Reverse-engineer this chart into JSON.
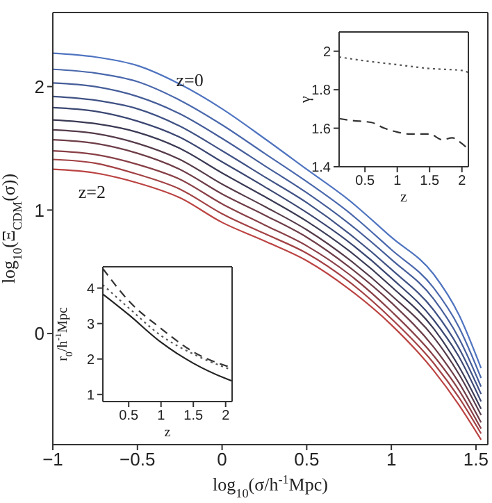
{
  "chart_data": [
    {
      "type": "line",
      "xlabel": "log$_{10}$(σ/h$^{-1}$Mpc)",
      "ylabel": "log$_{10}$(Ξ$_{CDM}$(σ))",
      "x": [
        -1,
        -0.75,
        -0.5,
        -0.25,
        0,
        0.25,
        0.5,
        0.75,
        1,
        1.25,
        1.4,
        1.53
      ],
      "xlim": [
        -1,
        1.57
      ],
      "ylim": [
        -0.9,
        2.6
      ],
      "xticks": [
        {
          "value": -1,
          "label": "−1"
        },
        {
          "value": -0.5,
          "label": "−0.5"
        },
        0,
        0.5,
        1,
        1.5
      ],
      "yticks": [
        0,
        1,
        2
      ],
      "series": [
        {
          "color": "#4f74c0",
          "values": [
            2.27,
            2.24,
            2.17,
            2.02,
            1.82,
            1.58,
            1.33,
            1.08,
            0.78,
            0.48,
            0.15,
            -0.28
          ]
        },
        {
          "color": "#4a68ac",
          "values": [
            2.14,
            2.11,
            2.04,
            1.89,
            1.69,
            1.46,
            1.23,
            0.98,
            0.68,
            0.37,
            0.05,
            -0.36
          ]
        },
        {
          "color": "#455d99",
          "values": [
            2.03,
            2.0,
            1.92,
            1.78,
            1.58,
            1.36,
            1.14,
            0.89,
            0.6,
            0.28,
            -0.04,
            -0.43
          ]
        },
        {
          "color": "#405285",
          "values": [
            1.92,
            1.89,
            1.82,
            1.68,
            1.48,
            1.27,
            1.06,
            0.81,
            0.52,
            0.19,
            -0.12,
            -0.49
          ]
        },
        {
          "color": "#3b4772",
          "values": [
            1.83,
            1.8,
            1.72,
            1.59,
            1.39,
            1.19,
            0.98,
            0.74,
            0.45,
            0.11,
            -0.19,
            -0.55
          ]
        },
        {
          "color": "#3a3a55",
          "values": [
            1.73,
            1.7,
            1.63,
            1.5,
            1.3,
            1.11,
            0.91,
            0.67,
            0.38,
            0.04,
            -0.27,
            -0.61
          ]
        },
        {
          "color": "#553b4a",
          "values": [
            1.65,
            1.62,
            1.54,
            1.41,
            1.21,
            1.03,
            0.84,
            0.6,
            0.31,
            -0.03,
            -0.33,
            -0.66
          ]
        },
        {
          "color": "#6e3d48",
          "values": [
            1.57,
            1.54,
            1.46,
            1.33,
            1.13,
            0.96,
            0.78,
            0.54,
            0.25,
            -0.11,
            -0.4,
            -0.72
          ]
        },
        {
          "color": "#883f46",
          "values": [
            1.48,
            1.45,
            1.37,
            1.25,
            1.05,
            0.88,
            0.71,
            0.48,
            0.18,
            -0.18,
            -0.46,
            -0.77
          ]
        },
        {
          "color": "#a24144",
          "values": [
            1.41,
            1.38,
            1.29,
            1.17,
            0.97,
            0.81,
            0.65,
            0.42,
            0.12,
            -0.24,
            -0.52,
            -0.81
          ]
        },
        {
          "color": "#bb4342",
          "values": [
            1.33,
            1.3,
            1.22,
            1.1,
            0.9,
            0.75,
            0.59,
            0.36,
            0.07,
            -0.3,
            -0.58,
            -0.86
          ]
        }
      ],
      "annotations": [
        "z=0",
        "z=2"
      ]
    },
    {
      "type": "line",
      "xlabel": "z",
      "ylabel": "γ",
      "xlim": [
        0.1,
        2.1
      ],
      "ylim": [
        1.4,
        2.1
      ],
      "xticks": [
        0.5,
        1,
        1.5,
        2
      ],
      "yticks": [
        1.4,
        1.6,
        1.8,
        2
      ],
      "series": [
        {
          "color": "#555555",
          "line_style": "dotted",
          "x": [
            0.1,
            0.5,
            1,
            1.5,
            2,
            2.1
          ],
          "values": [
            1.97,
            1.95,
            1.93,
            1.91,
            1.9,
            1.89
          ]
        },
        {
          "color": "#333333",
          "line_style": "dashed",
          "x": [
            0.1,
            0.3,
            0.6,
            0.8,
            1,
            1.2,
            1.5,
            1.7,
            1.85,
            2,
            2.1
          ],
          "values": [
            1.65,
            1.64,
            1.63,
            1.6,
            1.58,
            1.57,
            1.57,
            1.54,
            1.55,
            1.52,
            1.49
          ]
        }
      ]
    },
    {
      "type": "line",
      "xlabel": "z",
      "ylabel": "r$_{0}$/h$^{-1}$Mpc",
      "xlim": [
        0.1,
        2.1
      ],
      "ylim": [
        0.8,
        4.6
      ],
      "xticks": [
        0.5,
        1,
        1.5,
        2
      ],
      "yticks": [
        1,
        2,
        3,
        4
      ],
      "series": [
        {
          "color": "#222222",
          "line_style": "solid",
          "x": [
            0.1,
            0.5,
            1,
            1.5,
            2,
            2.1
          ],
          "values": [
            3.83,
            3.25,
            2.47,
            1.88,
            1.45,
            1.38
          ]
        },
        {
          "color": "#333333",
          "line_style": "dashed",
          "x": [
            0.1,
            0.5,
            1,
            1.5,
            2.1
          ],
          "values": [
            4.55,
            3.64,
            2.86,
            2.2,
            1.75
          ]
        },
        {
          "color": "#555555",
          "line_style": "dotted",
          "x": [
            0.1,
            0.5,
            1,
            1.5,
            2.1
          ],
          "values": [
            4.09,
            3.44,
            2.66,
            2.14,
            1.69
          ]
        }
      ]
    }
  ]
}
